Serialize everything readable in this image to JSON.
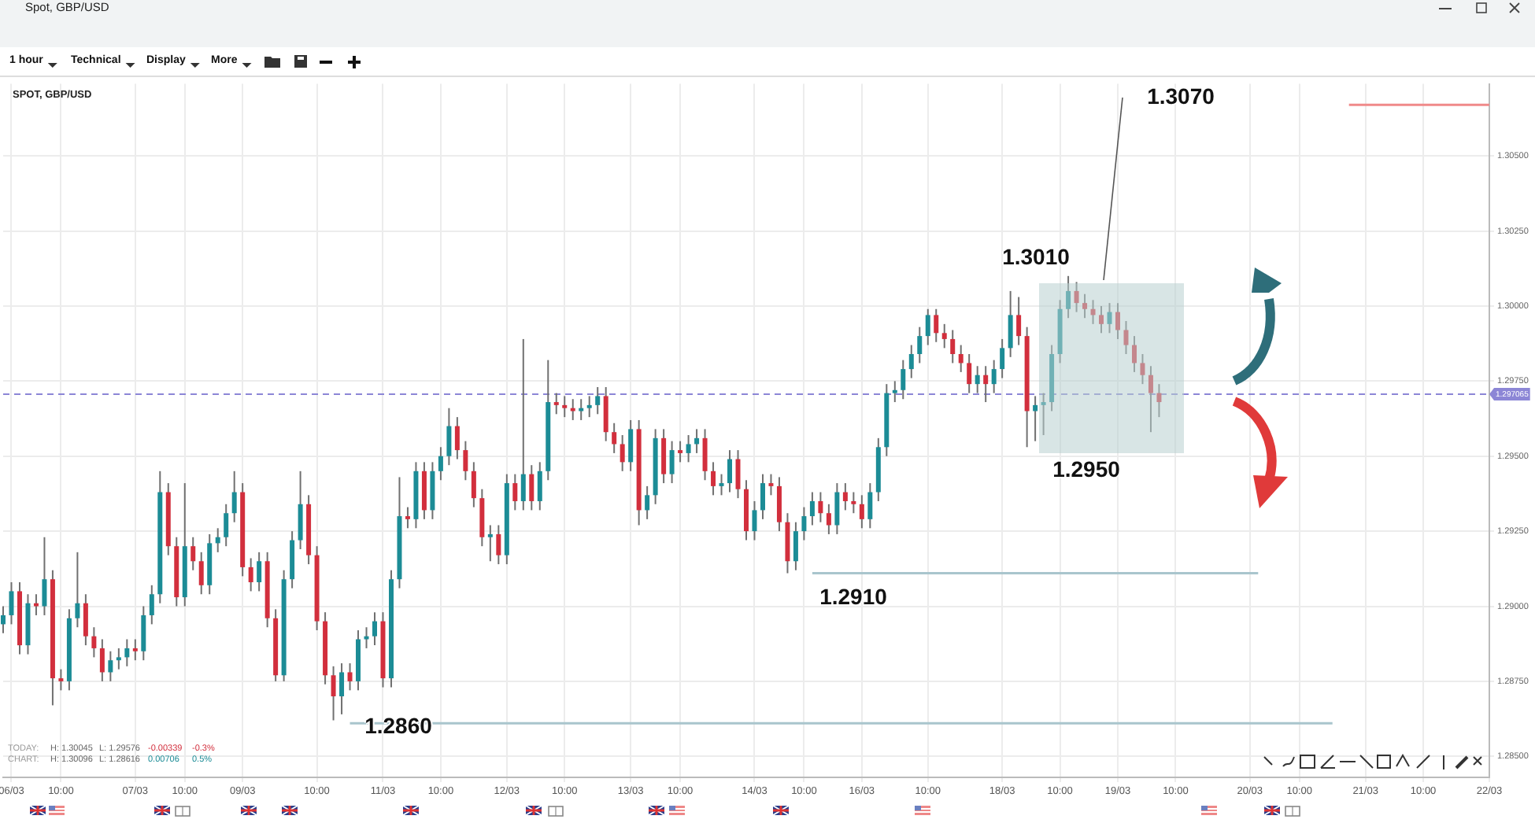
{
  "chart_data": {
    "type": "candlestick",
    "title": "SPOT, GBP/USD",
    "categories": [
      null,
      "06/03",
      null,
      null,
      null,
      null,
      null,
      "10:00",
      null,
      null,
      null,
      null,
      null,
      null,
      null,
      null,
      "07/03",
      null,
      null,
      null,
      null,
      null,
      "10:00",
      null,
      null,
      null,
      null,
      null,
      null,
      "09/03",
      null,
      null,
      null,
      null,
      null,
      null,
      null,
      null,
      "10:00",
      null,
      null,
      null,
      null,
      null,
      null,
      null,
      "11/03",
      null,
      null,
      null,
      null,
      null,
      null,
      "10:00",
      null,
      null,
      null,
      null,
      null,
      null,
      null,
      "12/03",
      null,
      null,
      null,
      null,
      null,
      null,
      "10:00",
      null,
      null,
      null,
      null,
      null,
      null,
      null,
      "13/03",
      null,
      null,
      null,
      null,
      null,
      "10:00",
      null,
      null,
      null,
      null,
      null,
      null,
      null,
      null,
      "14/03",
      null,
      null,
      null,
      null,
      null,
      "10:00",
      null,
      null,
      null,
      null,
      null,
      null,
      "16/03",
      null,
      null,
      null,
      null,
      null,
      null,
      null,
      "10:00",
      null,
      null,
      null,
      null,
      null,
      null,
      null,
      null,
      "18/03",
      null,
      null,
      null,
      null,
      null,
      null,
      "10:00",
      null,
      null,
      null,
      null,
      null,
      null,
      "19/03",
      null,
      null,
      null,
      null,
      null,
      null,
      "10:00",
      null,
      null,
      null,
      null,
      null,
      null,
      null,
      null,
      "20/03",
      null,
      null,
      null,
      null,
      null,
      "10:00",
      null,
      null,
      null,
      null,
      null,
      null,
      null,
      "21/03",
      null,
      null,
      null,
      null,
      null,
      null,
      "10:00",
      null,
      null,
      null,
      null,
      null,
      null,
      null,
      "22/03"
    ],
    "ohlc": [
      [
        1.2894,
        1.29,
        1.2891,
        1.2897
      ],
      [
        1.2897,
        1.2908,
        1.2894,
        1.2905
      ],
      [
        1.2905,
        1.2908,
        1.2884,
        1.2887
      ],
      [
        1.2887,
        1.2904,
        1.2884,
        1.2901
      ],
      [
        1.2901,
        1.2904,
        1.2897,
        1.29
      ],
      [
        1.29,
        1.2923,
        1.2897,
        1.2909
      ],
      [
        1.2909,
        1.2912,
        1.2867,
        1.2876
      ],
      [
        1.2876,
        1.2879,
        1.2872,
        1.2875
      ],
      [
        1.2875,
        1.2899,
        1.2872,
        1.2896
      ],
      [
        1.2896,
        1.2918,
        1.2893,
        1.2901
      ],
      [
        1.2901,
        1.2904,
        1.2887,
        1.289
      ],
      [
        1.289,
        1.2893,
        1.2883,
        1.2886
      ],
      [
        1.2886,
        1.2889,
        1.2875,
        1.2878
      ],
      [
        1.2878,
        1.2885,
        1.2875,
        1.2882
      ],
      [
        1.2882,
        1.2886,
        1.2879,
        1.2883
      ],
      [
        1.2883,
        1.2889,
        1.288,
        1.2886
      ],
      [
        1.2886,
        1.2889,
        1.2882,
        1.2885
      ],
      [
        1.2885,
        1.29,
        1.2882,
        1.2897
      ],
      [
        1.2897,
        1.2907,
        1.2894,
        1.2904
      ],
      [
        1.2904,
        1.2945,
        1.2901,
        1.2938
      ],
      [
        1.2938,
        1.2941,
        1.2917,
        1.292
      ],
      [
        1.292,
        1.2923,
        1.29,
        1.2903
      ],
      [
        1.2903,
        1.2941,
        1.29,
        1.292
      ],
      [
        1.292,
        1.2923,
        1.2912,
        1.2915
      ],
      [
        1.2915,
        1.2918,
        1.2904,
        1.2907
      ],
      [
        1.2907,
        1.2924,
        1.2904,
        1.2921
      ],
      [
        1.2921,
        1.2926,
        1.2918,
        1.2923
      ],
      [
        1.2923,
        1.2934,
        1.292,
        1.2931
      ],
      [
        1.2931,
        1.2945,
        1.2928,
        1.2938
      ],
      [
        1.2938,
        1.2941,
        1.291,
        1.2913
      ],
      [
        1.2913,
        1.2916,
        1.2905,
        1.2908
      ],
      [
        1.2908,
        1.2918,
        1.2905,
        1.2915
      ],
      [
        1.2915,
        1.2918,
        1.2893,
        1.2896
      ],
      [
        1.2896,
        1.2899,
        1.2875,
        1.2877
      ],
      [
        1.2877,
        1.2912,
        1.2875,
        1.2909
      ],
      [
        1.2909,
        1.2925,
        1.2906,
        1.2922
      ],
      [
        1.2922,
        1.2945,
        1.2919,
        1.2934
      ],
      [
        1.2934,
        1.2937,
        1.2914,
        1.2917
      ],
      [
        1.2917,
        1.292,
        1.2892,
        1.2895
      ],
      [
        1.2895,
        1.2898,
        1.2874,
        1.2877
      ],
      [
        1.2877,
        1.288,
        1.2862,
        1.287
      ],
      [
        1.287,
        1.2881,
        1.2864,
        1.2878
      ],
      [
        1.2878,
        1.2881,
        1.2872,
        1.2875
      ],
      [
        1.2875,
        1.2892,
        1.2872,
        1.2889
      ],
      [
        1.2889,
        1.2893,
        1.2886,
        1.289
      ],
      [
        1.289,
        1.2898,
        1.2887,
        1.2895
      ],
      [
        1.2895,
        1.2898,
        1.2873,
        1.2876
      ],
      [
        1.2876,
        1.2912,
        1.2873,
        1.2909
      ],
      [
        1.2909,
        1.2943,
        1.2906,
        1.293
      ],
      [
        1.293,
        1.2933,
        1.2926,
        1.2929
      ],
      [
        1.2929,
        1.2948,
        1.2926,
        1.2945
      ],
      [
        1.2945,
        1.2948,
        1.2929,
        1.2932
      ],
      [
        1.2932,
        1.2948,
        1.2929,
        1.2945
      ],
      [
        1.2945,
        1.2953,
        1.2942,
        1.295
      ],
      [
        1.295,
        1.2966,
        1.2947,
        1.296
      ],
      [
        1.296,
        1.2963,
        1.2949,
        1.2952
      ],
      [
        1.2952,
        1.2955,
        1.2942,
        1.2945
      ],
      [
        1.2945,
        1.2948,
        1.2933,
        1.2936
      ],
      [
        1.2936,
        1.2939,
        1.292,
        1.2923
      ],
      [
        1.2923,
        1.2927,
        1.2915,
        1.2924
      ],
      [
        1.2924,
        1.2927,
        1.2914,
        1.2917
      ],
      [
        1.2917,
        1.2944,
        1.2914,
        1.2941
      ],
      [
        1.2941,
        1.2944,
        1.2932,
        1.2935
      ],
      [
        1.2935,
        1.2989,
        1.2932,
        1.2944
      ],
      [
        1.2944,
        1.2947,
        1.2932,
        1.2935
      ],
      [
        1.2935,
        1.2948,
        1.2932,
        1.2945
      ],
      [
        1.2945,
        1.2982,
        1.2942,
        1.2968
      ],
      [
        1.2968,
        1.2971,
        1.2964,
        1.2967
      ],
      [
        1.2967,
        1.297,
        1.2963,
        1.2966
      ],
      [
        1.2966,
        1.2969,
        1.2962,
        1.2965
      ],
      [
        1.2965,
        1.2969,
        1.2962,
        1.2966
      ],
      [
        1.2966,
        1.297,
        1.2963,
        1.2967
      ],
      [
        1.2967,
        1.2973,
        1.2964,
        1.297
      ],
      [
        1.297,
        1.2973,
        1.2955,
        1.2958
      ],
      [
        1.2958,
        1.2961,
        1.2951,
        1.2954
      ],
      [
        1.2954,
        1.2957,
        1.2945,
        1.2948
      ],
      [
        1.2948,
        1.2962,
        1.2945,
        1.2959
      ],
      [
        1.2959,
        1.2962,
        1.2927,
        1.2932
      ],
      [
        1.2932,
        1.294,
        1.2929,
        1.2937
      ],
      [
        1.2937,
        1.2959,
        1.2934,
        1.2956
      ],
      [
        1.2956,
        1.2959,
        1.2941,
        1.2944
      ],
      [
        1.2944,
        1.2955,
        1.2941,
        1.2952
      ],
      [
        1.2952,
        1.2955,
        1.2948,
        1.2951
      ],
      [
        1.2951,
        1.2957,
        1.2948,
        1.2954
      ],
      [
        1.2954,
        1.2959,
        1.2951,
        1.2956
      ],
      [
        1.2956,
        1.2959,
        1.2942,
        1.2945
      ],
      [
        1.2945,
        1.2948,
        1.2937,
        1.294
      ],
      [
        1.294,
        1.2944,
        1.2937,
        1.2941
      ],
      [
        1.2941,
        1.2952,
        1.2938,
        1.2949
      ],
      [
        1.2949,
        1.2952,
        1.2936,
        1.2939
      ],
      [
        1.2939,
        1.2942,
        1.2922,
        1.2925
      ],
      [
        1.2925,
        1.2935,
        1.2922,
        1.2932
      ],
      [
        1.2932,
        1.2944,
        1.2929,
        1.2941
      ],
      [
        1.2941,
        1.2944,
        1.2937,
        1.294
      ],
      [
        1.294,
        1.2943,
        1.2925,
        1.2928
      ],
      [
        1.2928,
        1.2931,
        1.2911,
        1.2915
      ],
      [
        1.2915,
        1.2928,
        1.2912,
        1.2925
      ],
      [
        1.2925,
        1.2933,
        1.2922,
        1.293
      ],
      [
        1.293,
        1.2938,
        1.2927,
        1.2935
      ],
      [
        1.2935,
        1.2938,
        1.2928,
        1.2931
      ],
      [
        1.2931,
        1.2934,
        1.2924,
        1.2927
      ],
      [
        1.2927,
        1.2941,
        1.2924,
        1.2938
      ],
      [
        1.2938,
        1.2941,
        1.2932,
        1.2935
      ],
      [
        1.2935,
        1.2938,
        1.2931,
        1.2934
      ],
      [
        1.2934,
        1.2937,
        1.2926,
        1.2929
      ],
      [
        1.2929,
        1.2941,
        1.2926,
        1.2938
      ],
      [
        1.2938,
        1.2956,
        1.2935,
        1.2953
      ],
      [
        1.2953,
        1.2974,
        1.295,
        1.2971
      ],
      [
        1.2971,
        1.2975,
        1.2968,
        1.2972
      ],
      [
        1.2972,
        1.2982,
        1.2969,
        1.2979
      ],
      [
        1.2979,
        1.2987,
        1.2976,
        1.2984
      ],
      [
        1.2984,
        1.2993,
        1.2981,
        1.299
      ],
      [
        1.299,
        1.2999,
        1.2987,
        1.2997
      ],
      [
        1.2997,
        1.2999,
        1.2988,
        1.2991
      ],
      [
        1.2991,
        1.2994,
        1.2986,
        1.2989
      ],
      [
        1.2989,
        1.2992,
        1.2981,
        1.2984
      ],
      [
        1.2984,
        1.2987,
        1.2978,
        1.2981
      ],
      [
        1.2981,
        1.2984,
        1.2971,
        1.2974
      ],
      [
        1.2974,
        1.298,
        1.2971,
        1.2977
      ],
      [
        1.2977,
        1.298,
        1.2968,
        1.2974
      ],
      [
        1.2974,
        1.2982,
        1.2971,
        1.2979
      ],
      [
        1.2979,
        1.2989,
        1.2976,
        1.2986
      ],
      [
        1.2986,
        1.3005,
        1.2983,
        1.2997
      ],
      [
        1.2997,
        1.3003,
        1.2987,
        1.299
      ],
      [
        1.299,
        1.2993,
        1.2953,
        1.2965
      ],
      [
        1.2965,
        1.297,
        1.2955,
        1.2967
      ],
      [
        1.2967,
        1.2971,
        1.2957,
        1.2968
      ],
      [
        1.2968,
        1.2987,
        1.2965,
        1.2984
      ],
      [
        1.2984,
        1.3002,
        1.2981,
        1.2999
      ],
      [
        1.2999,
        1.301,
        1.2996,
        1.3005
      ],
      [
        1.3005,
        1.3008,
        1.2998,
        1.3001
      ],
      [
        1.3001,
        1.3004,
        1.2996,
        1.2999
      ],
      [
        1.2999,
        1.3002,
        1.2994,
        1.2997
      ],
      [
        1.2997,
        1.3,
        1.2991,
        1.2994
      ],
      [
        1.2994,
        1.3001,
        1.2991,
        1.2998
      ],
      [
        1.2998,
        1.3001,
        1.2989,
        1.2992
      ],
      [
        1.2992,
        1.2995,
        1.2984,
        1.2987
      ],
      [
        1.2987,
        1.299,
        1.2978,
        1.2981
      ],
      [
        1.2981,
        1.2984,
        1.2974,
        1.2977
      ],
      [
        1.2977,
        1.298,
        1.2958,
        1.2971
      ],
      [
        1.2971,
        1.2974,
        1.2963,
        1.2968
      ],
      null,
      null,
      null,
      null,
      null,
      null,
      null,
      null,
      null,
      null,
      null,
      null,
      null,
      null,
      null,
      null,
      null,
      null,
      null,
      null,
      null,
      null,
      null,
      null,
      null,
      null,
      null,
      null,
      null,
      null,
      null,
      null,
      null,
      null,
      null,
      null,
      null,
      null,
      null,
      null
    ],
    "series": [
      {
        "type": "line",
        "color": "#a9c5cd",
        "values": [
          null,
          null,
          null,
          null,
          null,
          null,
          null,
          null,
          null,
          null,
          null,
          null,
          null,
          null,
          null,
          null,
          null,
          null,
          null,
          null,
          null,
          null,
          null,
          null,
          null,
          null,
          null,
          null,
          null,
          null,
          null,
          null,
          null,
          null,
          null,
          null,
          null,
          null,
          null,
          null,
          null,
          null,
          null,
          null,
          null,
          null,
          null,
          null,
          null,
          null,
          null,
          null,
          null,
          null,
          null,
          null,
          null,
          null,
          null,
          null,
          null,
          null,
          null,
          null,
          null,
          null,
          null,
          null,
          null,
          null,
          null,
          null,
          null,
          null,
          null,
          null,
          null,
          null,
          null,
          null,
          null,
          null,
          null,
          null,
          null,
          null,
          null,
          null,
          null,
          null,
          null,
          null,
          null,
          null,
          null,
          null,
          null,
          null,
          1.2911,
          1.2911,
          1.2911,
          1.2911,
          1.2911,
          1.2911,
          1.2911,
          1.2911,
          1.2911,
          1.2911,
          1.2911,
          1.2911,
          1.2911,
          1.2911,
          1.2911,
          1.2911,
          1.2911,
          1.2911,
          1.2911,
          1.2911,
          1.2911,
          1.2911,
          1.2911,
          1.2911,
          1.2911,
          1.2911,
          1.2911,
          1.2911,
          1.2911,
          1.2911,
          1.2911,
          1.2911,
          1.2911,
          1.2911,
          1.2911,
          1.2911,
          1.2911,
          1.2911,
          1.2911,
          1.2911,
          1.2911,
          1.2911,
          1.2911,
          1.2911,
          1.2911,
          1.2911,
          1.2911,
          1.2911,
          1.2911,
          1.2911,
          1.2911,
          1.2911,
          1.2911,
          1.2911,
          1.2911,
          null,
          null,
          null,
          null,
          null,
          null,
          null,
          null,
          null,
          null,
          null,
          null,
          null,
          null,
          null,
          null,
          null,
          null,
          null,
          null,
          null,
          null,
          null,
          null,
          null,
          null,
          null,
          null
        ]
      },
      {
        "type": "line",
        "color": "#a9c5cd",
        "values": [
          null,
          null,
          null,
          null,
          null,
          null,
          null,
          null,
          null,
          null,
          null,
          null,
          null,
          null,
          null,
          null,
          null,
          null,
          null,
          null,
          null,
          null,
          null,
          null,
          null,
          null,
          null,
          null,
          null,
          null,
          null,
          null,
          null,
          null,
          null,
          null,
          null,
          null,
          null,
          null,
          null,
          null,
          1.2861,
          1.2861,
          1.2861,
          1.2861,
          1.2861,
          1.2861,
          1.2861,
          1.2861,
          1.2861,
          1.2861,
          1.2861,
          1.2861,
          1.2861,
          1.2861,
          1.2861,
          1.2861,
          1.2861,
          1.2861,
          1.2861,
          1.2861,
          1.2861,
          1.2861,
          1.2861,
          1.2861,
          1.2861,
          1.2861,
          1.2861,
          1.2861,
          1.2861,
          1.2861,
          1.2861,
          1.2861,
          1.2861,
          1.2861,
          1.2861,
          1.2861,
          1.2861,
          1.2861,
          1.2861,
          1.2861,
          1.2861,
          1.2861,
          1.2861,
          1.2861,
          1.2861,
          1.2861,
          1.2861,
          1.2861,
          1.2861,
          1.2861,
          1.2861,
          1.2861,
          1.2861,
          1.2861,
          1.2861,
          1.2861,
          1.2861,
          1.2861,
          1.2861,
          1.2861,
          1.2861,
          1.2861,
          1.2861,
          1.2861,
          1.2861,
          1.2861,
          1.2861,
          1.2861,
          1.2861,
          1.2861,
          1.2861,
          1.2861,
          1.2861,
          1.2861,
          1.2861,
          1.2861,
          1.2861,
          1.2861,
          1.2861,
          1.2861,
          1.2861,
          1.2861,
          1.2861,
          1.2861,
          1.2861,
          1.2861,
          1.2861,
          1.2861,
          1.2861,
          1.2861,
          1.2861,
          1.2861,
          1.2861,
          1.2861,
          1.2861,
          1.2861,
          1.2861,
          1.2861,
          1.2861,
          1.2861,
          1.2861,
          1.2861,
          1.2861,
          1.2861,
          1.2861,
          1.2861,
          1.2861,
          1.2861,
          1.2861,
          1.2861,
          1.2861,
          1.2861,
          1.2861,
          1.2861,
          1.2861,
          1.2861,
          1.2861,
          1.2861,
          1.2861,
          1.2861,
          null,
          null,
          null,
          null,
          null,
          null,
          null,
          null,
          null,
          null,
          null,
          null,
          null,
          null,
          null,
          null,
          null,
          null,
          null
        ]
      },
      {
        "type": "line",
        "color": "#f08a8a",
        "values": [
          null,
          null,
          null,
          null,
          null,
          null,
          null,
          null,
          null,
          null,
          null,
          null,
          null,
          null,
          null,
          null,
          null,
          null,
          null,
          null,
          null,
          null,
          null,
          null,
          null,
          null,
          null,
          null,
          null,
          null,
          null,
          null,
          null,
          null,
          null,
          null,
          null,
          null,
          null,
          null,
          null,
          null,
          null,
          null,
          null,
          null,
          null,
          null,
          null,
          null,
          null,
          null,
          null,
          null,
          null,
          null,
          null,
          null,
          null,
          null,
          null,
          null,
          null,
          null,
          null,
          null,
          null,
          null,
          null,
          null,
          null,
          null,
          null,
          null,
          null,
          null,
          null,
          null,
          null,
          null,
          null,
          null,
          null,
          null,
          null,
          null,
          null,
          null,
          null,
          null,
          null,
          null,
          null,
          null,
          null,
          null,
          null,
          null,
          null,
          null,
          null,
          null,
          null,
          null,
          null,
          null,
          null,
          null,
          null,
          null,
          null,
          null,
          null,
          null,
          null,
          null,
          null,
          null,
          null,
          null,
          null,
          null,
          null,
          null,
          null,
          null,
          null,
          null,
          null,
          null,
          null,
          null,
          null,
          null,
          null,
          null,
          null,
          null,
          null,
          null,
          null,
          null,
          null,
          null,
          null,
          null,
          null,
          null,
          null,
          null,
          null,
          null,
          null,
          null,
          null,
          null,
          null,
          null,
          null,
          null,
          null,
          null,
          null,
          1.3067,
          1.3067,
          1.3067,
          1.3067,
          1.3067,
          1.3067,
          1.3067,
          1.3067,
          1.3067,
          1.3067,
          1.3067,
          1.3067,
          1.3067,
          1.3067,
          1.3067,
          1.3067,
          1.3067,
          1.3067
        ]
      }
    ],
    "ylim": [
      1.2843,
      1.3074
    ],
    "yticks": [
      {
        "value": 1.285,
        "label": "1.28500"
      },
      {
        "value": 1.2875,
        "label": "1.28750"
      },
      {
        "value": 1.29,
        "label": "1.29000"
      },
      {
        "value": 1.2925,
        "label": "1.29250"
      },
      {
        "value": 1.295,
        "label": "1.29500"
      },
      {
        "value": 1.2975,
        "label": "1.29750"
      },
      {
        "value": 1.3,
        "label": "1.30000"
      },
      {
        "value": 1.3025,
        "label": "1.30250"
      },
      {
        "value": 1.305,
        "label": "1.30500"
      }
    ],
    "ref_lines": [
      {
        "axis": "y",
        "value": 1.297065,
        "label": "1.297065",
        "color": "#8c86d6",
        "line_style": "dashed"
      }
    ],
    "annotations": [
      "1.3070",
      "1.3010",
      "1.2950",
      "1.2910",
      "1.2860",
      "TODAY:",
      "H: 1.30045",
      "L: 1.29576",
      "-0.00339",
      "-0.3%",
      "CHART:",
      "H: 1.30096",
      "L: 1.28616",
      "0.00706",
      "0.5%",
      "Spot, GBP/USD",
      "1 hour",
      "Technical",
      "Display",
      "More"
    ],
    "grid": true,
    "legend": false,
    "marker": "none",
    "line_style": "solid"
  }
}
